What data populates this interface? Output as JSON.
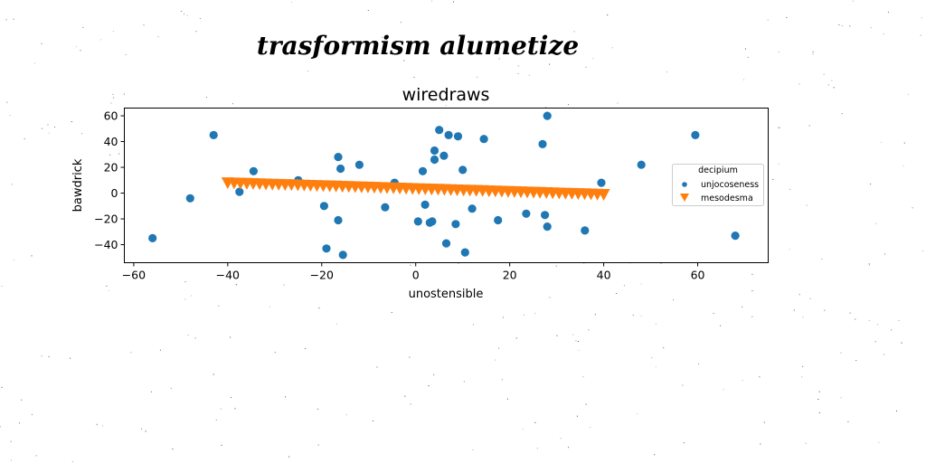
{
  "chart_data": {
    "type": "scatter",
    "suptitle": "trasformism alumetize",
    "title": "wiredraws",
    "xlabel": "unostensible",
    "ylabel": "bawdrick",
    "xlim": [
      -62,
      75
    ],
    "ylim": [
      -54,
      66
    ],
    "xticks": [
      -60,
      -40,
      -20,
      0,
      20,
      40,
      60
    ],
    "yticks": [
      -40,
      -20,
      0,
      20,
      40,
      60
    ],
    "xtick_labels": [
      "−60",
      "−40",
      "−20",
      "0",
      "20",
      "40",
      "60"
    ],
    "ytick_labels": [
      "−40",
      "−20",
      "0",
      "20",
      "40",
      "60"
    ],
    "grid": false,
    "legend": {
      "title": "decipium",
      "placement": "right"
    },
    "series": [
      {
        "name": "unjocoseness",
        "marker": "circle",
        "color": "#1f77b4",
        "x": [
          -56,
          -48,
          -43,
          -37.5,
          -34.5,
          -25,
          -19.5,
          -19,
          -16.5,
          -16.5,
          -16,
          -15.5,
          -12,
          -6.5,
          -4.5,
          0.5,
          1.5,
          2,
          3,
          3.5,
          4,
          4,
          5,
          6,
          6.5,
          7,
          8.5,
          9,
          10,
          10.5,
          12,
          14.5,
          17.5,
          23.5,
          27,
          27.5,
          28,
          28,
          36,
          39.5,
          48,
          59.5,
          68
        ],
        "y": [
          -35,
          -4,
          45,
          1,
          17,
          10,
          -10,
          -43,
          28,
          -21,
          19,
          -48,
          22,
          -11,
          8,
          -22,
          17,
          -9,
          -23,
          -22,
          26,
          33,
          49,
          29,
          -39,
          45,
          -24,
          44,
          18,
          -46,
          -12,
          42,
          -21,
          -16,
          38,
          -17,
          60,
          -26,
          -29,
          8,
          22,
          45,
          -33
        ]
      },
      {
        "name": "mesodesma",
        "marker": "triangle-down",
        "color": "#ff7f0e",
        "x_range": [
          -40,
          40
        ],
        "count": 60,
        "y_start": 8,
        "y_end": -1
      }
    ]
  }
}
